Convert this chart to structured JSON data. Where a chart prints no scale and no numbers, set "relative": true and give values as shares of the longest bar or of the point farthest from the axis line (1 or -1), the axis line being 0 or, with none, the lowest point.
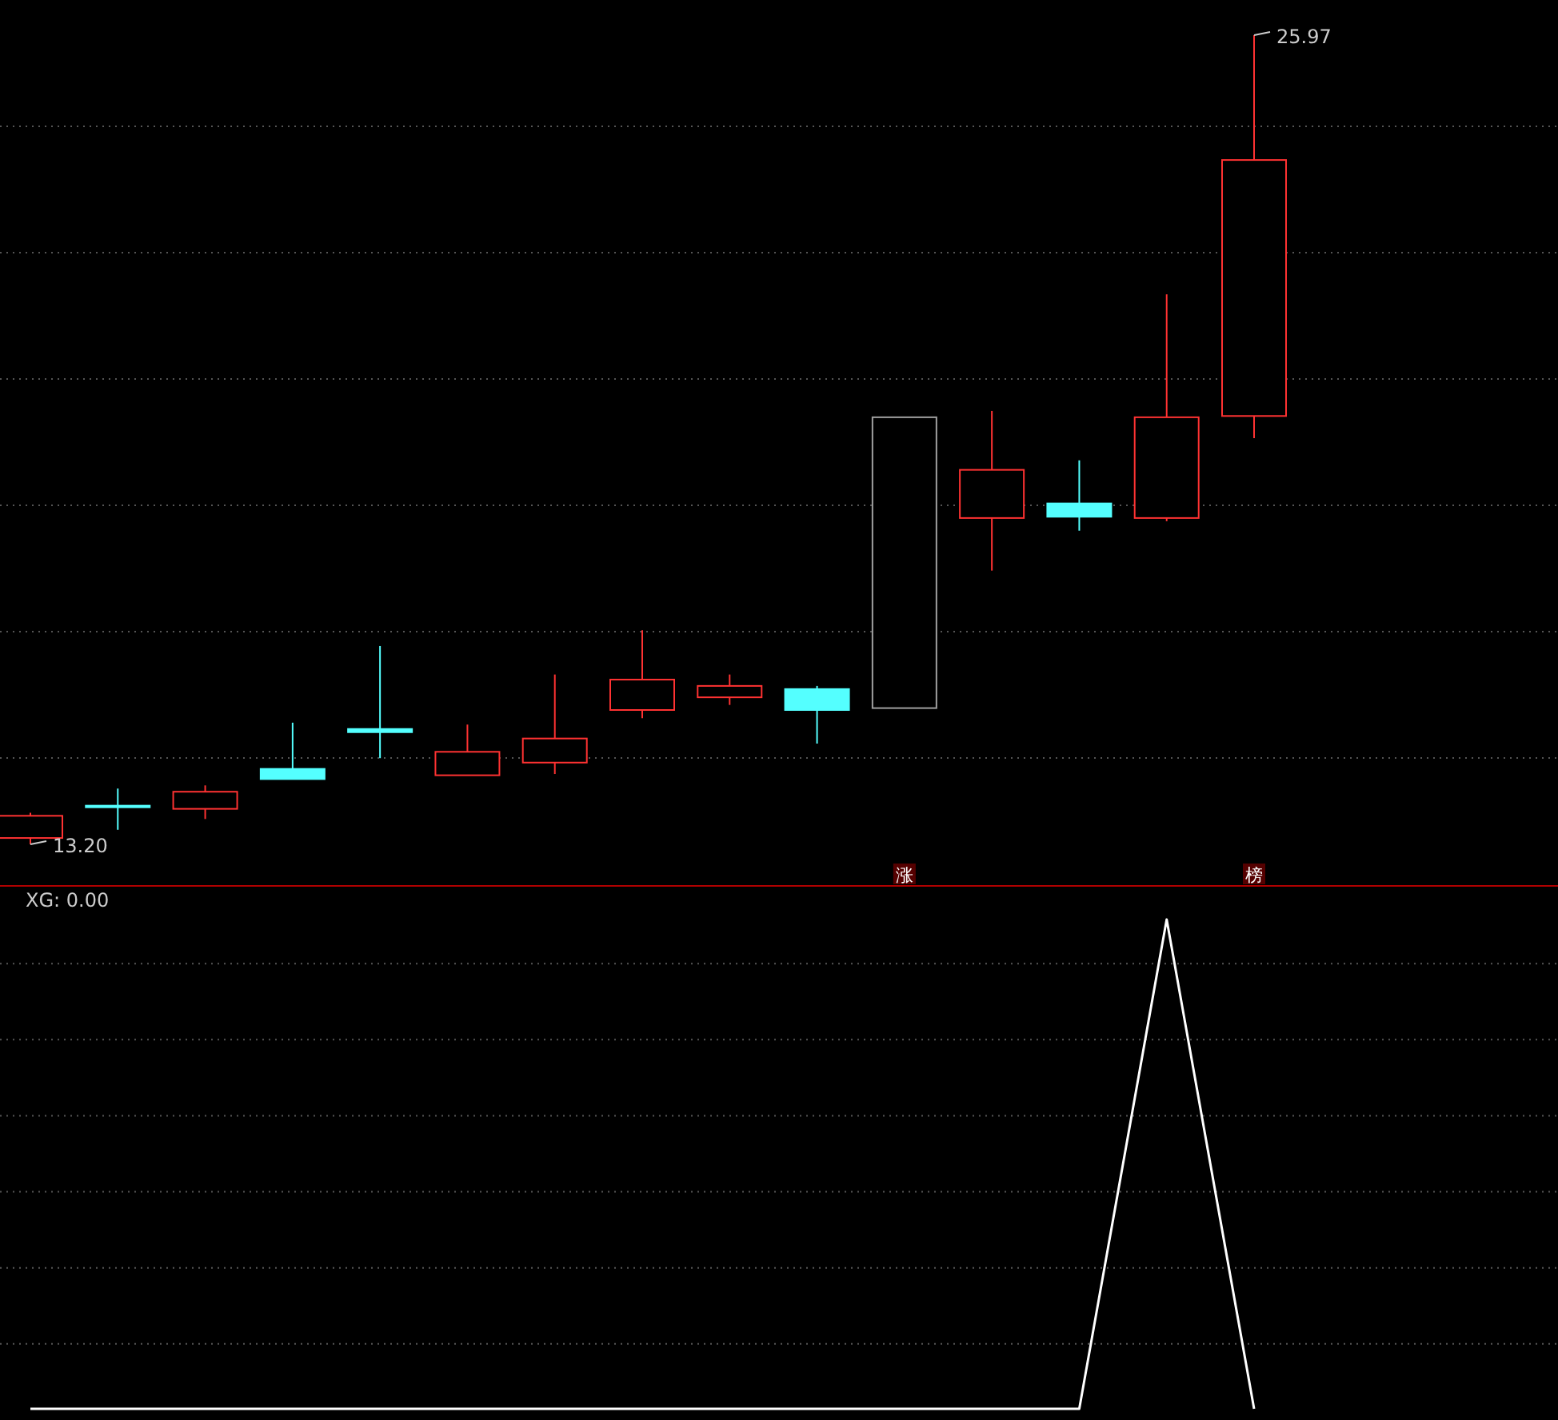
{
  "chart_data": [
    {
      "type": "candlestick",
      "categories": [
        null,
        null,
        null,
        null,
        null,
        null,
        null,
        null,
        null,
        null,
        null,
        null,
        null,
        null,
        null
      ],
      "ohlc": [
        [
          13.3,
          13.7,
          13.2,
          13.65
        ],
        [
          13.81,
          14.08,
          13.43,
          13.8
        ],
        [
          13.76,
          14.13,
          13.6,
          14.03
        ],
        [
          14.39,
          15.12,
          14.23,
          14.23
        ],
        [
          15.02,
          16.33,
          14.56,
          14.97
        ],
        [
          14.29,
          15.09,
          14.29,
          14.66
        ],
        [
          14.49,
          15.88,
          14.31,
          14.87
        ],
        [
          15.32,
          16.58,
          15.19,
          15.8
        ],
        [
          15.52,
          15.88,
          15.4,
          15.7
        ],
        [
          15.65,
          15.7,
          14.79,
          15.32
        ],
        [
          15.35,
          19.94,
          15.35,
          19.94
        ],
        [
          18.35,
          20.04,
          17.52,
          19.11
        ],
        [
          18.58,
          19.26,
          18.15,
          18.37
        ],
        [
          18.35,
          21.88,
          18.3,
          19.94
        ],
        [
          19.96,
          25.97,
          19.61,
          24.0
        ]
      ],
      "colors": [
        "#ff3232",
        "#54ffff",
        "#ff3232",
        "#54ffff",
        "#54ffff",
        "#ff3232",
        "#ff3232",
        "#ff3232",
        "#ff3232",
        "#54ffff",
        "#a0a0a0",
        "#ff3232",
        "#54ffff",
        "#ff3232",
        "#ff3232"
      ],
      "annotations": [
        "25.97",
        "13.20",
        "涨",
        "榜"
      ],
      "grid": true
    },
    {
      "type": "line",
      "title": "XG: 0.00",
      "categories": [
        null,
        null,
        null,
        null,
        null,
        null,
        null,
        null,
        null,
        null,
        null,
        null,
        null,
        null,
        null
      ],
      "series": [
        {
          "color": "#ffffff",
          "values": [
            0,
            0,
            0,
            0,
            0,
            0,
            0,
            0,
            0,
            0,
            0,
            0,
            0,
            1,
            0
          ]
        }
      ],
      "relative": true,
      "grid": true
    }
  ]
}
